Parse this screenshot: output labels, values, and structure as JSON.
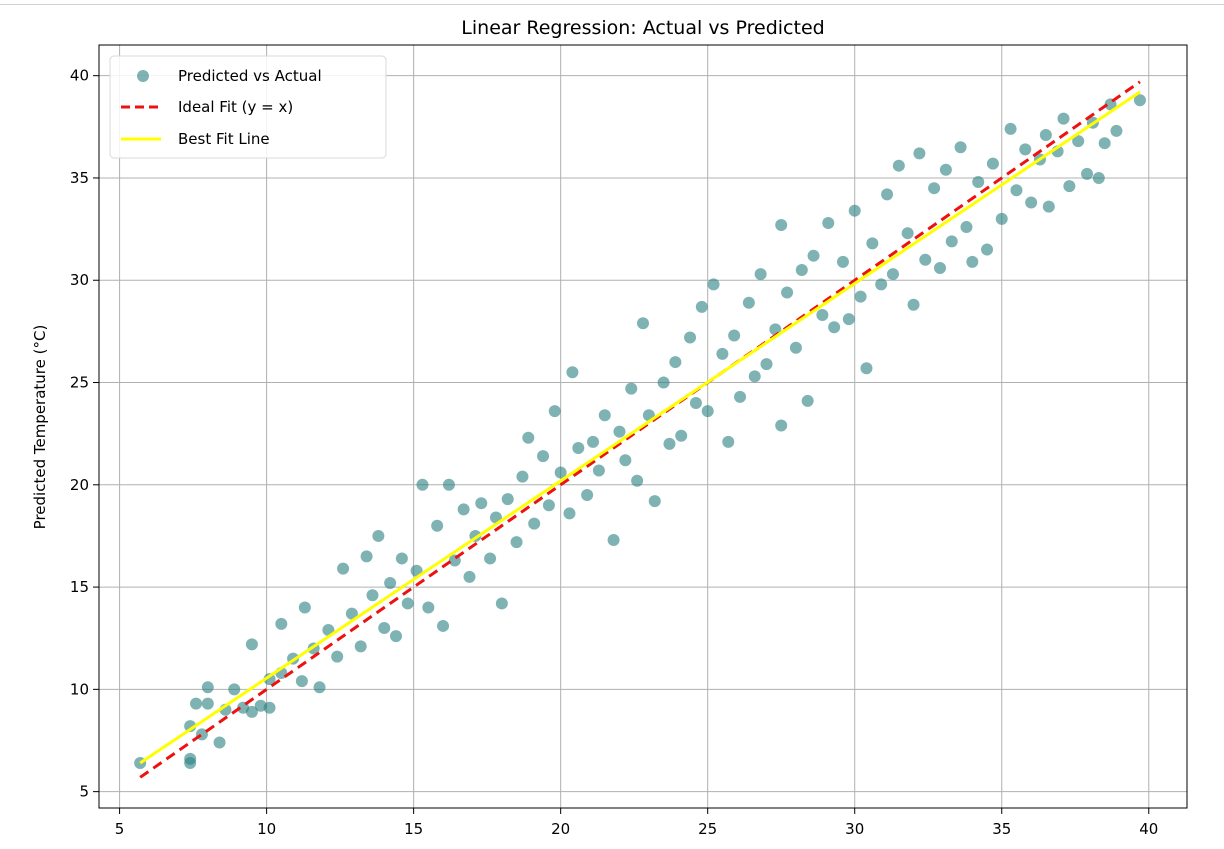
{
  "chart_data": {
    "type": "scatter",
    "title": "Linear Regression: Actual vs Predicted",
    "xlabel": "",
    "ylabel": "Predicted Temperature (°C)",
    "xlim": [
      4.3,
      41.3
    ],
    "ylim": [
      4.2,
      41.5
    ],
    "xticks": [
      5,
      10,
      15,
      20,
      25,
      30,
      35,
      40
    ],
    "yticks": [
      5,
      10,
      15,
      20,
      25,
      30,
      35,
      40
    ],
    "grid": true,
    "legend_position": "top-left",
    "series": [
      {
        "name": "Predicted vs Actual",
        "kind": "scatter",
        "color": "#2a8080",
        "alpha": 0.6,
        "points": [
          [
            5.7,
            6.4
          ],
          [
            7.4,
            6.4
          ],
          [
            7.4,
            6.6
          ],
          [
            7.4,
            8.2
          ],
          [
            7.6,
            9.3
          ],
          [
            7.8,
            7.8
          ],
          [
            8.0,
            9.3
          ],
          [
            8.0,
            10.1
          ],
          [
            8.4,
            7.4
          ],
          [
            8.6,
            9.0
          ],
          [
            8.9,
            10.0
          ],
          [
            9.2,
            9.1
          ],
          [
            9.5,
            8.9
          ],
          [
            9.5,
            12.2
          ],
          [
            9.8,
            9.2
          ],
          [
            10.1,
            10.5
          ],
          [
            10.1,
            9.1
          ],
          [
            10.5,
            10.8
          ],
          [
            10.5,
            13.2
          ],
          [
            10.9,
            11.5
          ],
          [
            11.2,
            10.4
          ],
          [
            11.3,
            14.0
          ],
          [
            11.6,
            12.0
          ],
          [
            11.8,
            10.1
          ],
          [
            12.1,
            12.9
          ],
          [
            12.4,
            11.6
          ],
          [
            12.6,
            15.9
          ],
          [
            12.9,
            13.7
          ],
          [
            13.2,
            12.1
          ],
          [
            13.4,
            16.5
          ],
          [
            13.6,
            14.6
          ],
          [
            13.8,
            17.5
          ],
          [
            14.0,
            13.0
          ],
          [
            14.2,
            15.2
          ],
          [
            14.4,
            12.6
          ],
          [
            14.6,
            16.4
          ],
          [
            14.8,
            14.2
          ],
          [
            15.1,
            15.8
          ],
          [
            15.3,
            20.0
          ],
          [
            15.5,
            14.0
          ],
          [
            15.8,
            18.0
          ],
          [
            16.0,
            13.1
          ],
          [
            16.2,
            20.0
          ],
          [
            16.4,
            16.3
          ],
          [
            16.7,
            18.8
          ],
          [
            16.9,
            15.5
          ],
          [
            17.1,
            17.5
          ],
          [
            17.3,
            19.1
          ],
          [
            17.6,
            16.4
          ],
          [
            17.8,
            18.4
          ],
          [
            18.0,
            14.2
          ],
          [
            18.2,
            19.3
          ],
          [
            18.5,
            17.2
          ],
          [
            18.7,
            20.4
          ],
          [
            18.9,
            22.3
          ],
          [
            19.1,
            18.1
          ],
          [
            19.4,
            21.4
          ],
          [
            19.6,
            19.0
          ],
          [
            19.8,
            23.6
          ],
          [
            20.0,
            20.6
          ],
          [
            20.3,
            18.6
          ],
          [
            20.4,
            25.5
          ],
          [
            20.6,
            21.8
          ],
          [
            20.9,
            19.5
          ],
          [
            21.1,
            22.1
          ],
          [
            21.3,
            20.7
          ],
          [
            21.5,
            23.4
          ],
          [
            21.8,
            17.3
          ],
          [
            22.0,
            22.6
          ],
          [
            22.2,
            21.2
          ],
          [
            22.4,
            24.7
          ],
          [
            22.6,
            20.2
          ],
          [
            22.8,
            27.9
          ],
          [
            23.0,
            23.4
          ],
          [
            23.2,
            19.2
          ],
          [
            23.5,
            25.0
          ],
          [
            23.7,
            22.0
          ],
          [
            23.9,
            26.0
          ],
          [
            24.1,
            22.4
          ],
          [
            24.4,
            27.2
          ],
          [
            24.6,
            24.0
          ],
          [
            24.8,
            28.7
          ],
          [
            25.0,
            23.6
          ],
          [
            25.2,
            29.8
          ],
          [
            25.5,
            26.4
          ],
          [
            25.7,
            22.1
          ],
          [
            25.9,
            27.3
          ],
          [
            26.1,
            24.3
          ],
          [
            26.4,
            28.9
          ],
          [
            26.6,
            25.3
          ],
          [
            26.8,
            30.3
          ],
          [
            27.0,
            25.9
          ],
          [
            27.3,
            27.6
          ],
          [
            27.5,
            22.9
          ],
          [
            27.5,
            32.7
          ],
          [
            27.7,
            29.4
          ],
          [
            28.0,
            26.7
          ],
          [
            28.2,
            30.5
          ],
          [
            28.4,
            24.1
          ],
          [
            28.6,
            31.2
          ],
          [
            28.9,
            28.3
          ],
          [
            29.1,
            32.8
          ],
          [
            29.3,
            27.7
          ],
          [
            29.6,
            30.9
          ],
          [
            29.8,
            28.1
          ],
          [
            30.0,
            33.4
          ],
          [
            30.2,
            29.2
          ],
          [
            30.4,
            25.7
          ],
          [
            30.6,
            31.8
          ],
          [
            30.9,
            29.8
          ],
          [
            31.1,
            34.2
          ],
          [
            31.3,
            30.3
          ],
          [
            31.5,
            35.6
          ],
          [
            31.8,
            32.3
          ],
          [
            32.0,
            28.8
          ],
          [
            32.2,
            36.2
          ],
          [
            32.4,
            31.0
          ],
          [
            32.7,
            34.5
          ],
          [
            32.9,
            30.6
          ],
          [
            33.1,
            35.4
          ],
          [
            33.3,
            31.9
          ],
          [
            33.6,
            36.5
          ],
          [
            33.8,
            32.6
          ],
          [
            34.0,
            30.9
          ],
          [
            34.2,
            34.8
          ],
          [
            34.5,
            31.5
          ],
          [
            34.7,
            35.7
          ],
          [
            35.0,
            33.0
          ],
          [
            35.3,
            37.4
          ],
          [
            35.5,
            34.4
          ],
          [
            35.8,
            36.4
          ],
          [
            36.0,
            33.8
          ],
          [
            36.3,
            35.9
          ],
          [
            36.5,
            37.1
          ],
          [
            36.6,
            33.6
          ],
          [
            36.9,
            36.3
          ],
          [
            37.1,
            37.9
          ],
          [
            37.3,
            34.6
          ],
          [
            37.6,
            36.8
          ],
          [
            37.9,
            35.2
          ],
          [
            38.1,
            37.7
          ],
          [
            38.3,
            35.0
          ],
          [
            38.5,
            36.7
          ],
          [
            38.7,
            38.6
          ],
          [
            38.9,
            37.3
          ],
          [
            39.7,
            38.8
          ]
        ]
      },
      {
        "name": "Ideal Fit (y = x)",
        "kind": "line",
        "style": "dashed",
        "color": "#ee1111",
        "x": [
          5.7,
          39.7
        ],
        "y": [
          5.7,
          39.7
        ]
      },
      {
        "name": "Best Fit Line",
        "kind": "line",
        "style": "solid",
        "color": "#ffff00",
        "x": [
          5.7,
          39.7
        ],
        "y": [
          6.4,
          39.2
        ]
      }
    ]
  }
}
